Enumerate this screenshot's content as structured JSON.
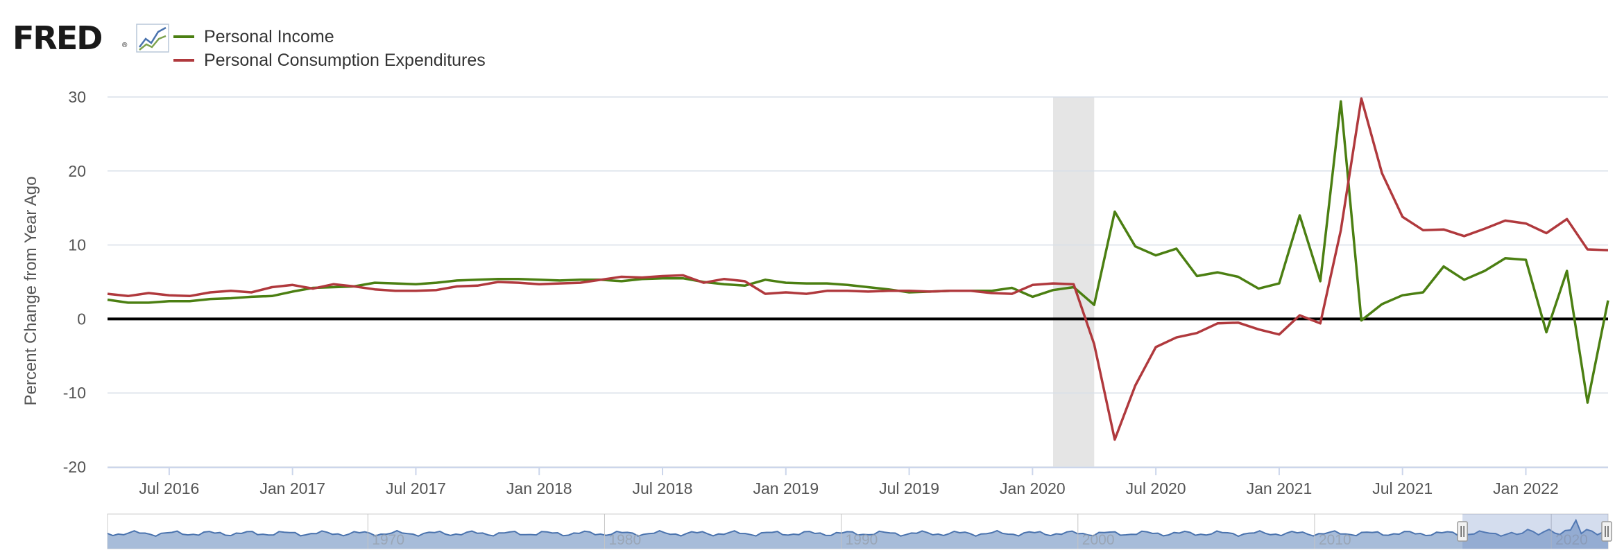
{
  "logo": {
    "text": "FRED",
    "registered": "®"
  },
  "colors": {
    "income": "#4b7f12",
    "pce": "#b0393d",
    "recession": "#e5e5e5",
    "navigator": "#a7bcd9",
    "navigator_line": "#4a73ae",
    "grid": "#d8dfe8",
    "zero": "#000000"
  },
  "chart_data": {
    "type": "line",
    "title": "",
    "xlabel": "",
    "ylabel": "Percent Change from Year Ago",
    "ylim": [
      -20,
      30
    ],
    "yticks": [
      "30",
      "20",
      "10",
      "0",
      "-10",
      "-20"
    ],
    "xticks": [
      "Jul 2016",
      "Jan 2017",
      "Jul 2017",
      "Jan 2018",
      "Jul 2018",
      "Jan 2019",
      "Jul 2019",
      "Jan 2020",
      "Jul 2020",
      "Jan 2021",
      "Jul 2021",
      "Jan 2022"
    ],
    "x_range": [
      "2016-04",
      "2022-05"
    ],
    "recession": {
      "start": "2020-02",
      "end": "2020-04"
    },
    "legend_position": "top-left",
    "grid": "horizontal",
    "x": [
      "2016-04",
      "2016-05",
      "2016-06",
      "2016-07",
      "2016-08",
      "2016-09",
      "2016-10",
      "2016-11",
      "2016-12",
      "2017-01",
      "2017-02",
      "2017-03",
      "2017-04",
      "2017-05",
      "2017-06",
      "2017-07",
      "2017-08",
      "2017-09",
      "2017-10",
      "2017-11",
      "2017-12",
      "2018-01",
      "2018-02",
      "2018-03",
      "2018-04",
      "2018-05",
      "2018-06",
      "2018-07",
      "2018-08",
      "2018-09",
      "2018-10",
      "2018-11",
      "2018-12",
      "2019-01",
      "2019-02",
      "2019-03",
      "2019-04",
      "2019-05",
      "2019-06",
      "2019-07",
      "2019-08",
      "2019-09",
      "2019-10",
      "2019-11",
      "2019-12",
      "2020-01",
      "2020-02",
      "2020-03",
      "2020-04",
      "2020-05",
      "2020-06",
      "2020-07",
      "2020-08",
      "2020-09",
      "2020-10",
      "2020-11",
      "2020-12",
      "2021-01",
      "2021-02",
      "2021-03",
      "2021-04",
      "2021-05",
      "2021-06",
      "2021-07",
      "2021-08",
      "2021-09",
      "2021-10",
      "2021-11",
      "2021-12",
      "2022-01",
      "2022-02",
      "2022-03",
      "2022-04",
      "2022-05"
    ],
    "series": [
      {
        "name": "Personal Income",
        "color": "#4b7f12",
        "values": [
          2.6,
          2.2,
          2.2,
          2.4,
          2.4,
          2.7,
          2.8,
          3.0,
          3.1,
          3.7,
          4.2,
          4.3,
          4.4,
          4.9,
          4.8,
          4.7,
          4.9,
          5.2,
          5.3,
          5.4,
          5.4,
          5.3,
          5.2,
          5.3,
          5.3,
          5.1,
          5.4,
          5.5,
          5.5,
          5.0,
          4.7,
          4.5,
          5.3,
          4.9,
          4.8,
          4.8,
          4.6,
          4.3,
          4.0,
          3.6,
          3.7,
          3.8,
          3.8,
          3.8,
          4.2,
          3.0,
          3.9,
          4.3,
          1.9,
          14.5,
          9.8,
          8.6,
          9.5,
          5.8,
          6.3,
          5.7,
          4.1,
          4.8,
          14.0,
          5.1,
          29.4,
          -0.2,
          2.0,
          3.2,
          3.6,
          7.1,
          5.3,
          6.5,
          8.2,
          8.0,
          -1.8,
          6.5,
          -11.3,
          2.5
        ]
      },
      {
        "name": "Personal Consumption Expenditures",
        "color": "#b0393d",
        "values": [
          3.4,
          3.1,
          3.5,
          3.2,
          3.1,
          3.6,
          3.8,
          3.6,
          4.3,
          4.6,
          4.1,
          4.7,
          4.4,
          4.0,
          3.8,
          3.8,
          3.9,
          4.4,
          4.5,
          5.0,
          4.9,
          4.7,
          4.8,
          4.9,
          5.3,
          5.7,
          5.6,
          5.8,
          5.9,
          4.9,
          5.4,
          5.1,
          3.4,
          3.6,
          3.4,
          3.8,
          3.8,
          3.7,
          3.8,
          3.8,
          3.7,
          3.8,
          3.8,
          3.5,
          3.4,
          4.6,
          4.8,
          4.7,
          -3.4,
          -16.3,
          -9.0,
          -3.8,
          -2.5,
          -1.9,
          -0.6,
          -0.5,
          -1.4,
          -2.1,
          0.5,
          -0.6,
          12.0,
          29.8,
          19.7,
          13.8,
          12.0,
          12.1,
          11.2,
          12.2,
          13.3,
          12.9,
          11.6,
          13.5,
          9.4,
          9.3
        ]
      }
    ]
  },
  "navigator": {
    "labels": [
      "1970",
      "1980",
      "1990",
      "2000",
      "2010",
      "2020"
    ],
    "handle_glyph": "||",
    "selected_range": [
      "2016-04",
      "2022-05"
    ]
  }
}
